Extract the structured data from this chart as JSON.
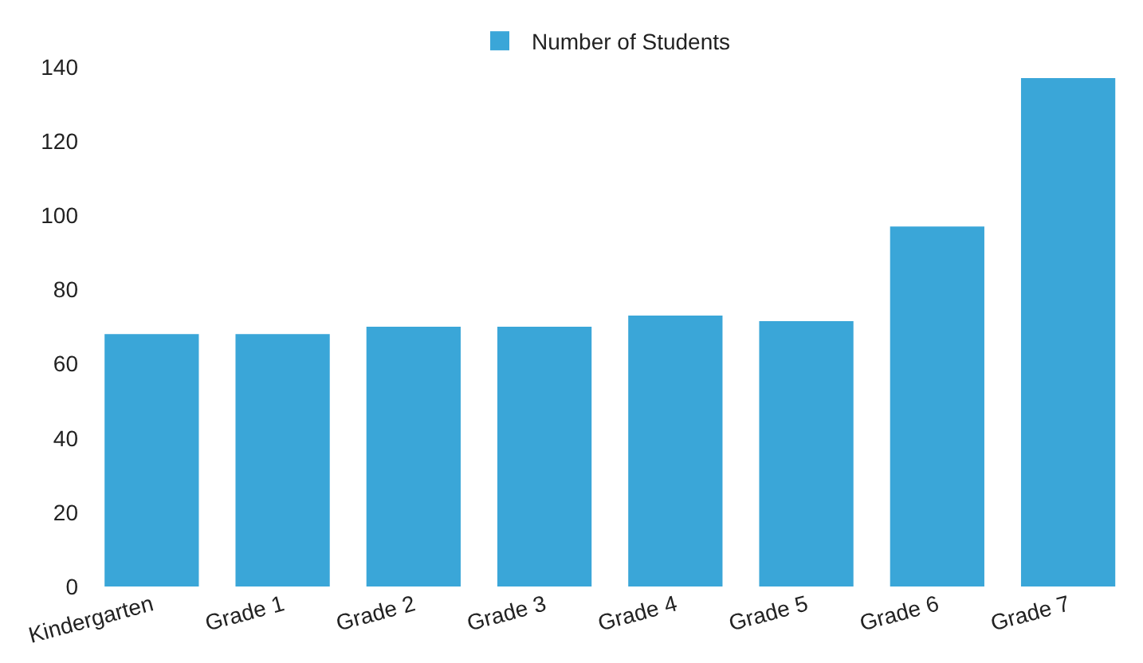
{
  "chart_data": {
    "type": "bar",
    "categories": [
      "Kindergarten",
      "Grade 1",
      "Grade 2",
      "Grade 3",
      "Grade 4",
      "Grade 5",
      "Grade 6",
      "Grade 7"
    ],
    "series": [
      {
        "name": "Number of Students",
        "color": "#3aa6d8",
        "values": [
          68,
          68,
          70,
          70,
          73,
          71.5,
          97,
          137
        ]
      }
    ],
    "ylim": [
      0,
      140
    ],
    "yticks": [
      0,
      20,
      40,
      60,
      80,
      100,
      120,
      140
    ],
    "legend": "top"
  }
}
